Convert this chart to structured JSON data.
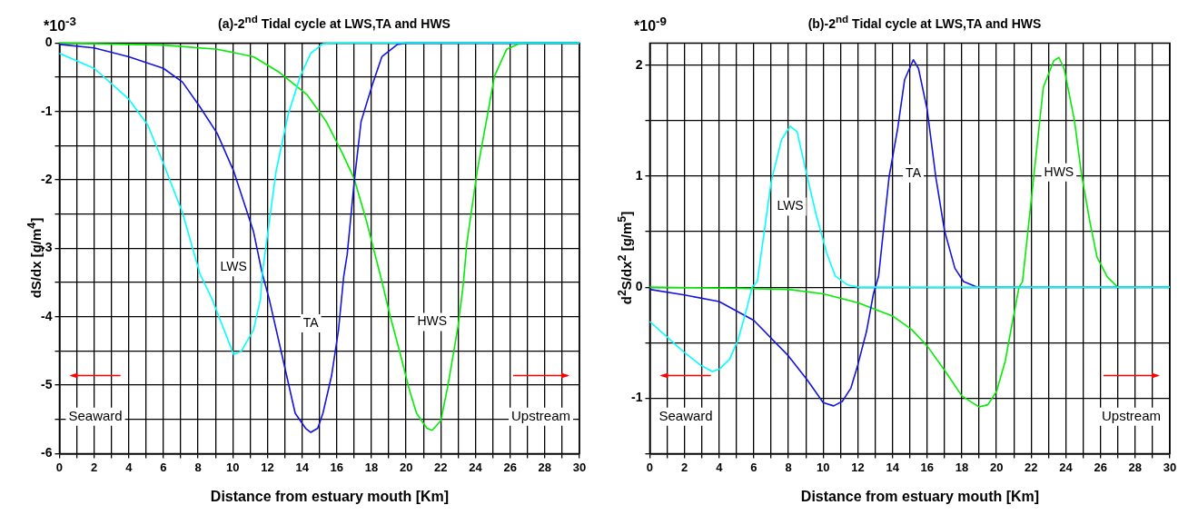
{
  "chart_data": [
    {
      "type": "line",
      "title": "(a)-2$^{nd}$ Tidal cycle at LWS,TA and HWS",
      "xlabel": "Distance from estuary mouth [Km]",
      "ylabel": "dS/dx [g/m$^{4}$]",
      "annotations": [
        "*10$^{-3}$",
        "Seaward",
        "Upstream"
      ],
      "legend": false,
      "grid": true,
      "marker": "none",
      "xlim": [
        0,
        30
      ],
      "xticks": [
        0,
        {
          "value": 1,
          "label": null
        },
        2,
        {
          "value": 3,
          "label": null
        },
        4,
        {
          "value": 5,
          "label": null
        },
        6,
        {
          "value": 7,
          "label": null
        },
        8,
        {
          "value": 9,
          "label": null
        },
        10,
        {
          "value": 11,
          "label": null
        },
        12,
        {
          "value": 13,
          "label": null
        },
        14,
        {
          "value": 15,
          "label": null
        },
        16,
        {
          "value": 17,
          "label": null
        },
        18,
        {
          "value": 19,
          "label": null
        },
        20,
        {
          "value": 21,
          "label": null
        },
        22,
        {
          "value": 23,
          "label": null
        },
        24,
        {
          "value": 25,
          "label": null
        },
        26,
        {
          "value": 27,
          "label": null
        },
        28,
        {
          "value": 29,
          "label": null
        },
        30
      ],
      "ylim": [
        -6,
        0
      ],
      "yticks": [
        -6,
        {
          "value": -5.5,
          "label": null
        },
        -5,
        {
          "value": -4.5,
          "label": null
        },
        -4,
        {
          "value": -3.5,
          "label": null
        },
        -3,
        {
          "value": -2.5,
          "label": null
        },
        -2,
        {
          "value": -1.5,
          "label": null
        },
        -1,
        {
          "value": -0.5,
          "label": null
        },
        0
      ],
      "series": [
        {
          "name": "LWS",
          "color": "#00ffff",
          "x": [
            0,
            2,
            4,
            5.1,
            6,
            7.1,
            8.1,
            8.8,
            9.4,
            10.05,
            10.5,
            11.2,
            11.6,
            11.7,
            12.5,
            13.2,
            13.9,
            14.5,
            15.2,
            16,
            30
          ],
          "values": [
            -0.15,
            -0.37,
            -0.82,
            -1.2,
            -1.76,
            -2.48,
            -3.37,
            -3.74,
            -4.13,
            -4.55,
            -4.5,
            -4.19,
            -3.74,
            -3.37,
            -1.87,
            -1.04,
            -0.48,
            -0.15,
            -0.01,
            0,
            0
          ]
        },
        {
          "name": "TA",
          "color": "#1414e0",
          "x": [
            0,
            2,
            4,
            6,
            7.1,
            8.1,
            9.1,
            10.05,
            11.2,
            11.7,
            12.1,
            13,
            13.6,
            14.2,
            14.5,
            14.9,
            15.2,
            15.7,
            16.1,
            16.4,
            16.6,
            17,
            17.4,
            18,
            18.6,
            19.5,
            20,
            30
          ],
          "values": [
            -0.02,
            -0.07,
            -0.2,
            -0.37,
            -0.57,
            -0.93,
            -1.32,
            -1.87,
            -2.76,
            -3.37,
            -3.74,
            -4.74,
            -5.41,
            -5.63,
            -5.69,
            -5.63,
            -5.41,
            -4.86,
            -4.19,
            -3.41,
            -3.09,
            -2.04,
            -1.15,
            -0.65,
            -0.2,
            -0.02,
            0,
            0
          ]
        },
        {
          "name": "HWS",
          "color": "#00ee00",
          "x": [
            0,
            6,
            9.1,
            11.2,
            12.7,
            14.3,
            15.4,
            16.3,
            17,
            17.7,
            18.6,
            19,
            19.7,
            20.2,
            20.6,
            21.2,
            21.5,
            22,
            22.4,
            23,
            23.3,
            23.5,
            24.1,
            24.7,
            25.1,
            25.8,
            26.5,
            27,
            30
          ],
          "values": [
            0,
            -0.03,
            -0.09,
            -0.2,
            -0.43,
            -0.76,
            -1.15,
            -1.6,
            -1.98,
            -2.59,
            -3.48,
            -3.91,
            -4.58,
            -5.08,
            -5.41,
            -5.63,
            -5.66,
            -5.52,
            -5.02,
            -4.13,
            -3.52,
            -2.93,
            -1.87,
            -1.04,
            -0.48,
            -0.09,
            -0.01,
            0,
            0
          ]
        }
      ]
    },
    {
      "type": "line",
      "title": "(b)-2$^{nd}$ Tidal cycle at LWS,TA and HWS",
      "xlabel": "Distance from estuary mouth [Km]",
      "ylabel": "d$^{2}$S/dx$^{2}$ [g/m$^{5}$]",
      "annotations": [
        "*10$^{-9}$",
        "Seaward",
        "Upstream"
      ],
      "legend": false,
      "grid": true,
      "marker": "none",
      "xlim": [
        0,
        30
      ],
      "xticks": [
        0,
        {
          "value": 1,
          "label": null
        },
        2,
        {
          "value": 3,
          "label": null
        },
        4,
        {
          "value": 5,
          "label": null
        },
        6,
        {
          "value": 7,
          "label": null
        },
        8,
        {
          "value": 9,
          "label": null
        },
        10,
        {
          "value": 11,
          "label": null
        },
        12,
        {
          "value": 13,
          "label": null
        },
        14,
        {
          "value": 15,
          "label": null
        },
        16,
        {
          "value": 17,
          "label": null
        },
        18,
        {
          "value": 19,
          "label": null
        },
        20,
        {
          "value": 21,
          "label": null
        },
        22,
        {
          "value": 23,
          "label": null
        },
        24,
        {
          "value": 25,
          "label": null
        },
        26,
        {
          "value": 27,
          "label": null
        },
        28,
        {
          "value": 29,
          "label": null
        },
        30
      ],
      "ylim": [
        -1.5,
        2.2
      ],
      "yticks": [
        {
          "value": -1.5,
          "label": null
        },
        -1,
        {
          "value": -0.5,
          "label": null
        },
        0,
        {
          "value": 0.5,
          "label": null
        },
        1,
        {
          "value": 1.5,
          "label": null
        },
        2
      ],
      "series": [
        {
          "name": "LWS",
          "color": "#00ffff",
          "x": [
            0,
            1,
            2,
            2.9,
            3.6,
            4,
            4.6,
            5.1,
            5.6,
            5.9,
            6.2,
            7,
            7.6,
            8.1,
            8.5,
            9,
            9.6,
            10.2,
            10.7,
            11.4,
            12,
            30
          ],
          "values": [
            -0.31,
            -0.45,
            -0.59,
            -0.7,
            -0.76,
            -0.74,
            -0.65,
            -0.47,
            -0.19,
            0,
            0.05,
            0.95,
            1.33,
            1.45,
            1.4,
            1.05,
            0.65,
            0.31,
            0.1,
            0.02,
            0,
            0
          ]
        },
        {
          "name": "TA",
          "color": "#1414e0",
          "x": [
            0,
            2,
            4,
            6,
            8,
            9.1,
            10,
            10.6,
            11.1,
            11.6,
            12,
            12.5,
            12.9,
            13.2,
            13.8,
            14.3,
            14.7,
            15.2,
            15.5,
            16,
            16.5,
            17,
            17.6,
            18.1,
            18.9,
            30
          ],
          "values": [
            -0.02,
            -0.07,
            -0.13,
            -0.3,
            -0.62,
            -0.84,
            -1.04,
            -1.07,
            -1.03,
            -0.91,
            -0.7,
            -0.4,
            -0.06,
            0.1,
            0.99,
            1.43,
            1.87,
            2.05,
            1.97,
            1.6,
            0.99,
            0.51,
            0.17,
            0.05,
            0,
            0
          ]
        },
        {
          "name": "HWS",
          "color": "#00ee00",
          "x": [
            0,
            5.1,
            8,
            10,
            12,
            14,
            15.1,
            16,
            17.1,
            18,
            19,
            19.5,
            20,
            20.5,
            20.9,
            21.3,
            21.5,
            22,
            22.7,
            23.3,
            23.6,
            23.9,
            24.5,
            24.9,
            25.4,
            25.8,
            26.4,
            27,
            30
          ],
          "values": [
            0,
            -0.01,
            -0.02,
            -0.06,
            -0.14,
            -0.26,
            -0.38,
            -0.53,
            -0.77,
            -0.98,
            -1.08,
            -1.06,
            -0.94,
            -0.67,
            -0.33,
            0,
            0.05,
            0.78,
            1.8,
            2.04,
            2.07,
            1.97,
            1.5,
            1.02,
            0.58,
            0.27,
            0.09,
            0,
            0
          ]
        }
      ]
    }
  ]
}
